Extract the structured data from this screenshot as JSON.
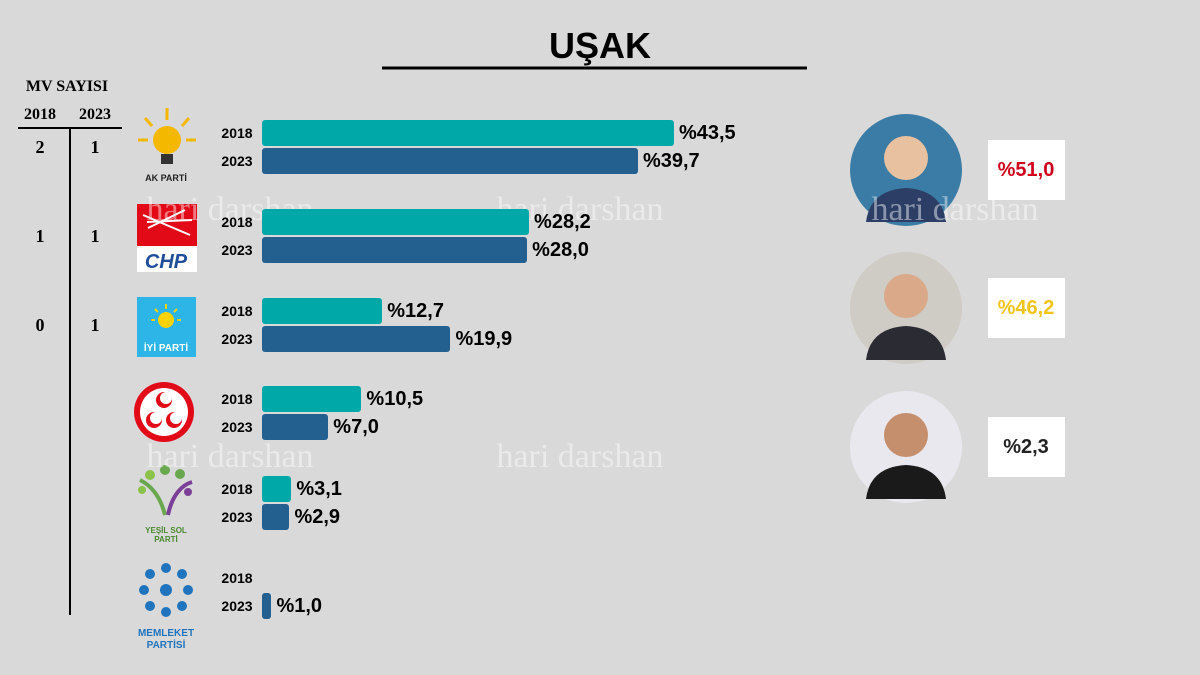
{
  "title": "UŞAK",
  "watermark": "hari darshan",
  "mv": {
    "title": "MV SAYISI",
    "years": [
      "2018",
      "2023"
    ],
    "rows": [
      [
        2,
        1
      ],
      [
        1,
        1
      ],
      [
        0,
        1
      ]
    ]
  },
  "chart_data": {
    "type": "bar",
    "orientation": "horizontal",
    "categories": [
      "AK PARTİ",
      "CHP",
      "İYİ PARTİ",
      null,
      "YEŞİL SOL PARTİ",
      "MEMLEKET PARTİSİ"
    ],
    "series": [
      {
        "name": "2018",
        "color": "#00a8a8",
        "values": [
          43.5,
          28.2,
          12.7,
          10.5,
          3.1,
          null
        ],
        "value_labels": [
          "%43,5",
          "%28,2",
          "%12,7",
          "%10,5",
          "%3,1",
          null
        ]
      },
      {
        "name": "2023",
        "color": "#235f8f",
        "values": [
          39.7,
          28.0,
          19.9,
          7.0,
          2.9,
          1.0
        ],
        "value_labels": [
          "%39,7",
          "%28,0",
          "%19,9",
          "%7,0",
          "%2,9",
          "%1,0"
        ]
      }
    ]
  },
  "candidates": [
    {
      "value": 51.0,
      "label": "%51,0",
      "color": "#d0021b"
    },
    {
      "value": 46.2,
      "label": "%46,2",
      "color": "#f0c419"
    },
    {
      "value": 2.3,
      "label": "%2,3",
      "color": "#222222"
    }
  ]
}
